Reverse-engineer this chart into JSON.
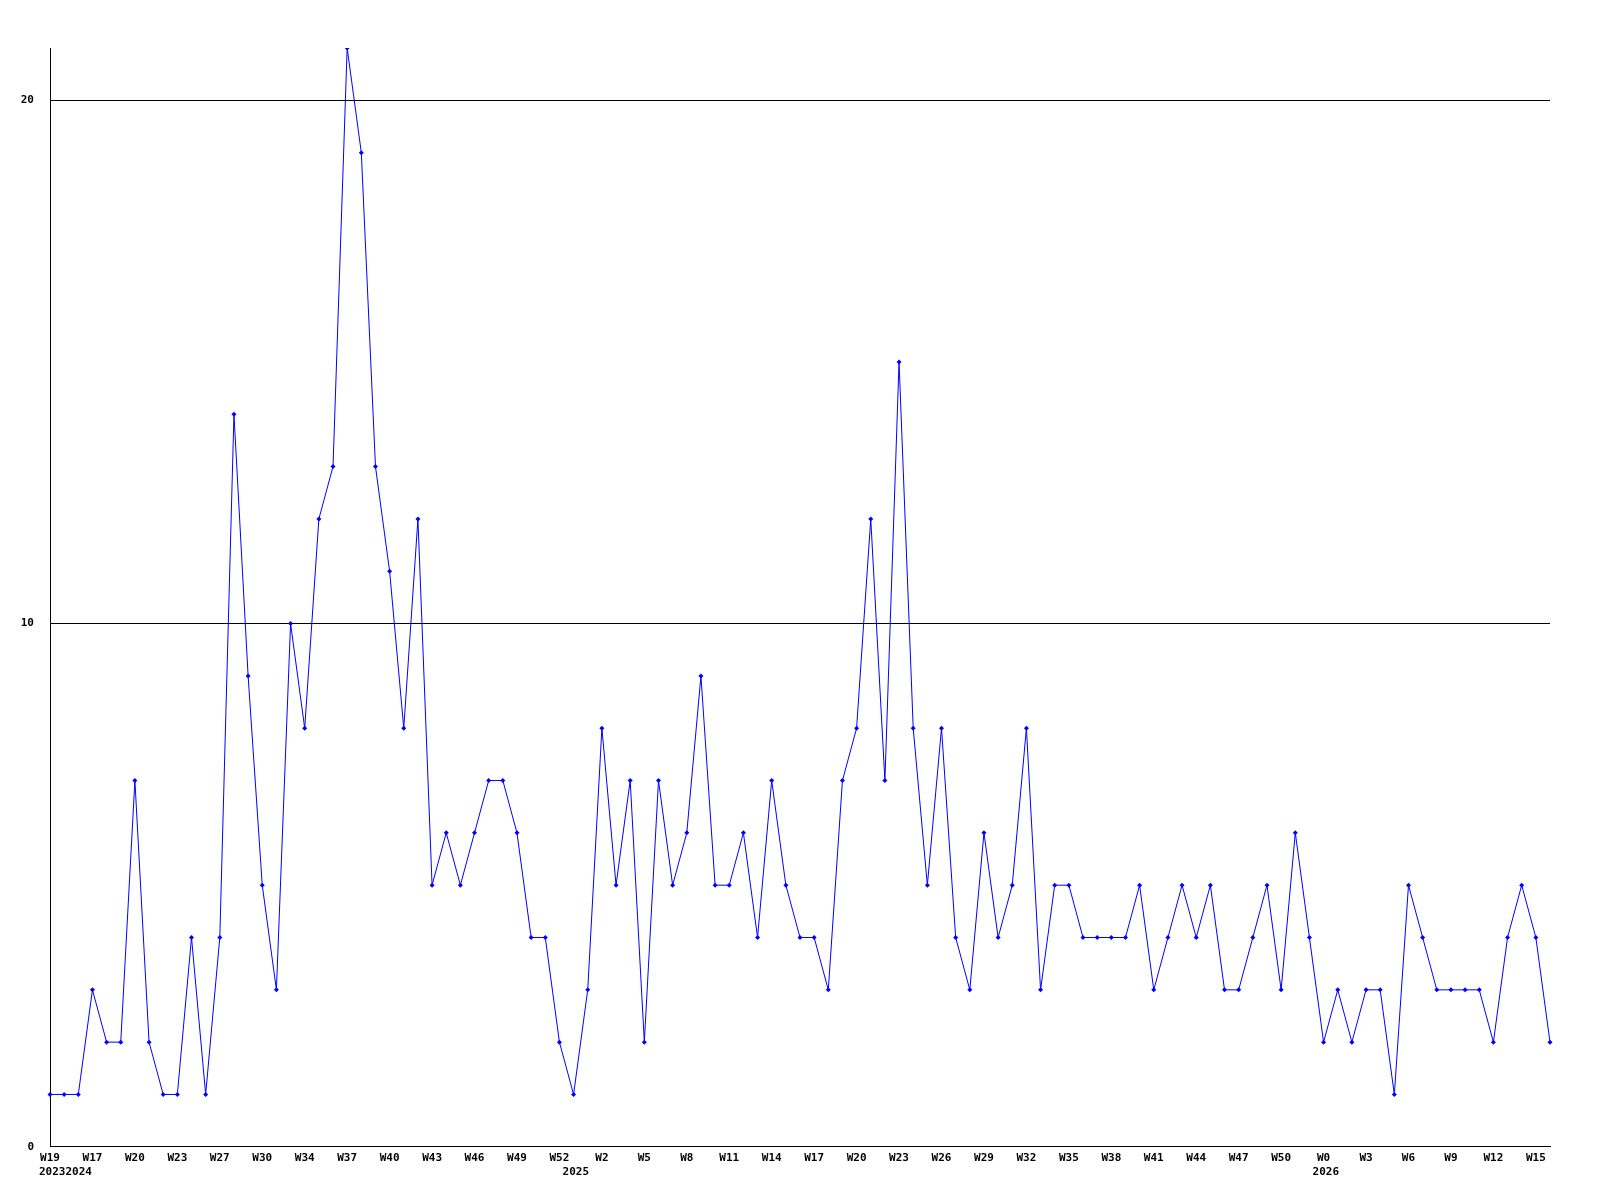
{
  "chart_data": {
    "type": "line",
    "categories": [
      "W19",
      null,
      null,
      "W17",
      null,
      null,
      "W20",
      null,
      null,
      "W23",
      null,
      null,
      "W27",
      null,
      null,
      "W30",
      null,
      null,
      "W34",
      null,
      null,
      "W37",
      null,
      null,
      "W40",
      null,
      null,
      "W43",
      null,
      null,
      "W46",
      null,
      null,
      "W49",
      null,
      null,
      "W52",
      null,
      null,
      "W2",
      null,
      null,
      "W5",
      null,
      null,
      "W8",
      null,
      null,
      "W11",
      null,
      null,
      "W14",
      null,
      null,
      "W17",
      null,
      null,
      "W20",
      null,
      null,
      "W23",
      null,
      null,
      "W26",
      null,
      null,
      "W29",
      null,
      null,
      "W32",
      null,
      null,
      "W35",
      null,
      null,
      "W38",
      null,
      null,
      "W41",
      null,
      null,
      "W44",
      null,
      null,
      "W47",
      null,
      null,
      "W50",
      null,
      null,
      "W0",
      null,
      null,
      "W3",
      null,
      null,
      "W6",
      null,
      null,
      "W9",
      null,
      null,
      "W12",
      null,
      null,
      "W15",
      null
    ],
    "series": [
      {
        "color": "#0000ff",
        "values": [
          1,
          1,
          1,
          3,
          2,
          2,
          7,
          2,
          1,
          1,
          4,
          1,
          4,
          14,
          9,
          5,
          3,
          10,
          8,
          12,
          13,
          21,
          19,
          13,
          11,
          8,
          12,
          5,
          6,
          5,
          6,
          7,
          7,
          6,
          4,
          4,
          2,
          1,
          3,
          8,
          5,
          7,
          2,
          7,
          5,
          6,
          9,
          5,
          5,
          6,
          4,
          7,
          5,
          4,
          4,
          3,
          7,
          8,
          12,
          7,
          15,
          8,
          5,
          8,
          4,
          3,
          6,
          4,
          5,
          8,
          3,
          5,
          5,
          4,
          4,
          4,
          4,
          5,
          3,
          4,
          5,
          4,
          5,
          3,
          3,
          4,
          5,
          3,
          6,
          4,
          2,
          3,
          2,
          3,
          3,
          1,
          5,
          4,
          3,
          3,
          3,
          3,
          2,
          4,
          5,
          4,
          2
        ]
      }
    ],
    "ylim": [
      0,
      21
    ],
    "yticks": [
      0,
      10,
      20
    ],
    "grid": "y",
    "legend": false,
    "marker": "diamond",
    "line_style": "solid",
    "annotations": [
      "2023",
      "2024",
      "2025",
      "2026"
    ]
  }
}
